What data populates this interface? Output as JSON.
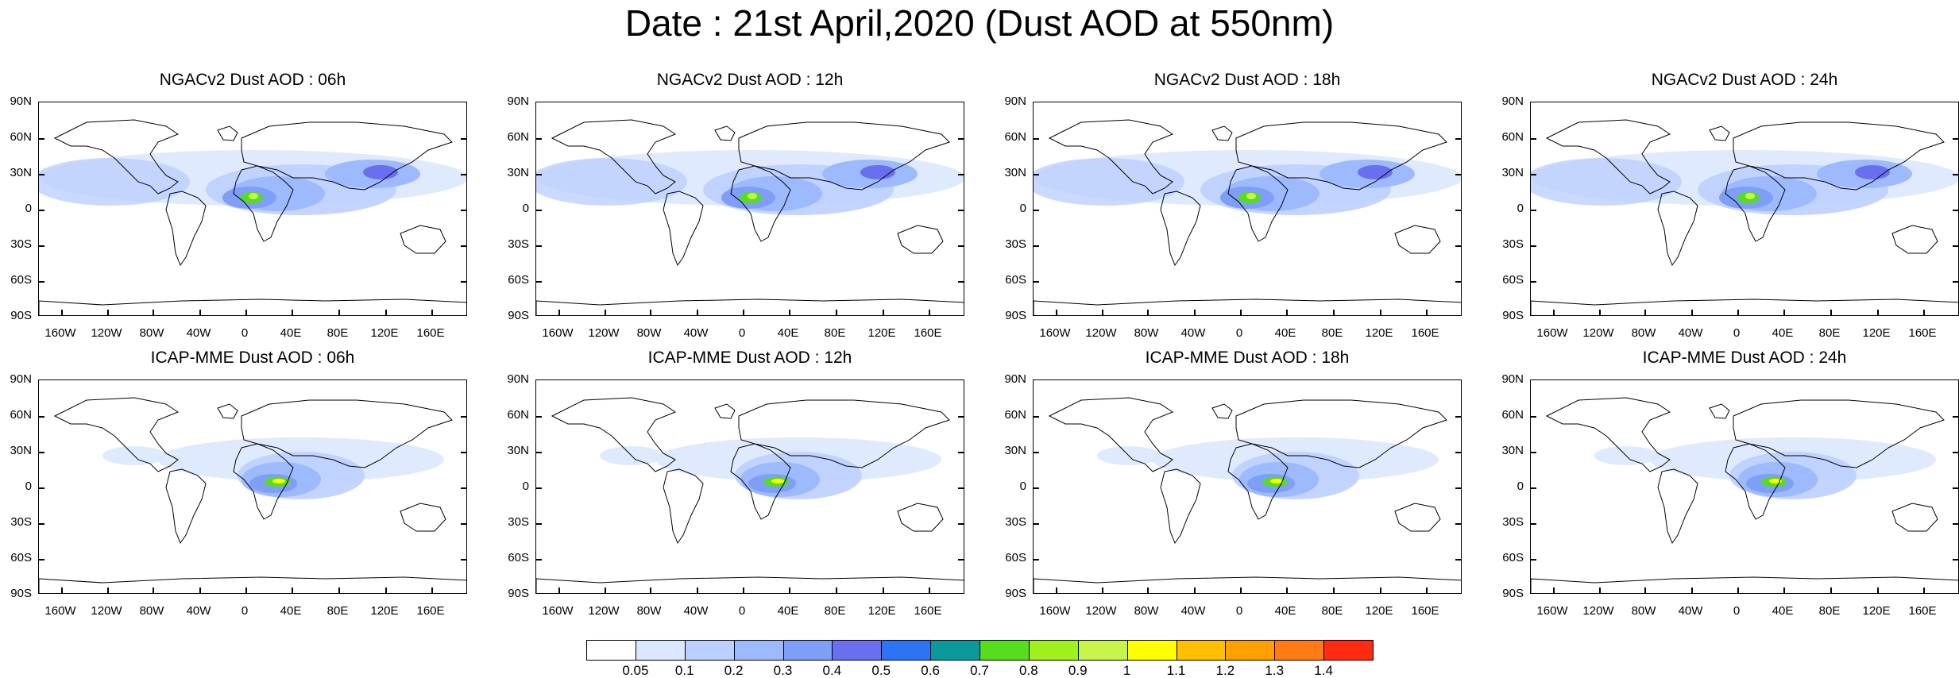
{
  "title": "Date : 21st April,2020 (Dust AOD at 550nm)",
  "panels": [
    {
      "title": "NGACv2 Dust AOD : 06h",
      "row": "top",
      "col": 0
    },
    {
      "title": "NGACv2 Dust AOD : 12h",
      "row": "top",
      "col": 1
    },
    {
      "title": "NGACv2 Dust AOD : 18h",
      "row": "top",
      "col": 2
    },
    {
      "title": "NGACv2 Dust AOD : 24h",
      "row": "top",
      "col": 3
    },
    {
      "title": "ICAP-MME Dust AOD : 06h",
      "row": "bottom",
      "col": 0
    },
    {
      "title": "ICAP-MME Dust AOD : 12h",
      "row": "bottom",
      "col": 1
    },
    {
      "title": "ICAP-MME Dust AOD : 18h",
      "row": "bottom",
      "col": 2
    },
    {
      "title": "ICAP-MME Dust AOD : 24h",
      "row": "bottom",
      "col": 3
    }
  ],
  "lat_labels": [
    "90N",
    "60N",
    "30N",
    "0",
    "30S",
    "60S",
    "90S"
  ],
  "lon_labels": [
    "160W",
    "120W",
    "80W",
    "40W",
    "0",
    "40E",
    "80E",
    "120E",
    "160E"
  ],
  "colorbar": {
    "labels": [
      "0.05",
      "0.1",
      "0.2",
      "0.3",
      "0.4",
      "0.5",
      "0.6",
      "0.7",
      "0.8",
      "0.9",
      "1",
      "1.1",
      "1.2",
      "1.3",
      "1.4"
    ],
    "colors": [
      "#ffffff",
      "#dbe6ff",
      "#bcd0ff",
      "#9dbaff",
      "#7f9ef8",
      "#6a6fef",
      "#2d73f5",
      "#0a9a9a",
      "#55dd1e",
      "#a0f01e",
      "#c8f54a",
      "#ffff00",
      "#ffc000",
      "#ffa000",
      "#ff7a10",
      "#ff2a10"
    ]
  }
}
